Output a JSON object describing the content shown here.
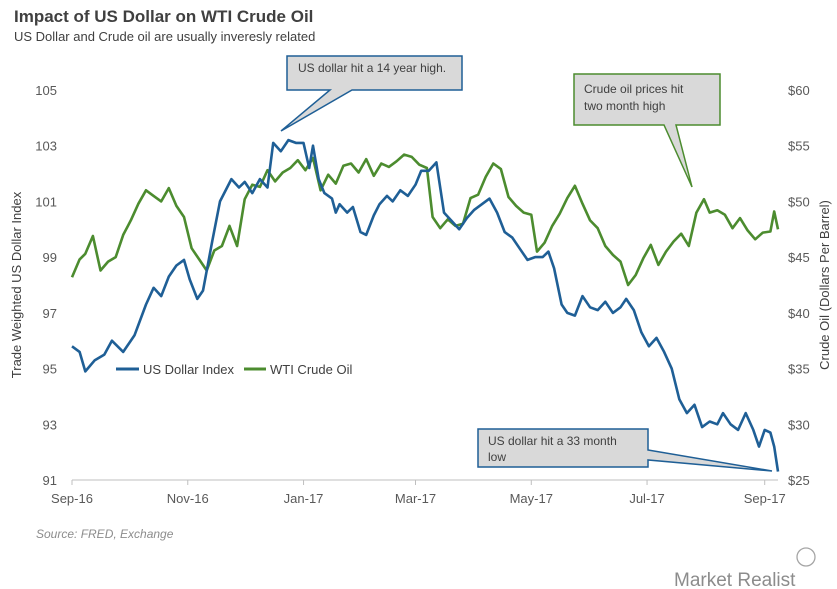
{
  "title": "Impact of US Dollar on WTI Crude Oil",
  "subtitle": "US Dollar and Crude oil are usually inveresly related",
  "source": "Source: FRED, Exchange",
  "brand": "Market Realist",
  "chart_data": {
    "type": "line",
    "xlabel": "",
    "x_ticks": [
      "Sep-16",
      "Nov-16",
      "Jan-17",
      "Mar-17",
      "May-17",
      "Jul-17",
      "Sep-17"
    ],
    "x_range": [
      "2016-09-01",
      "2017-09-08"
    ],
    "y_left": {
      "label": "Trade Weighted US Dollar Index",
      "ticks": [
        "105",
        "103",
        "101",
        "99",
        "97",
        "95",
        "93",
        "91"
      ],
      "range": [
        91,
        105
      ]
    },
    "y_right": {
      "label": "Crude Oil (Dollars  Per Barrel)",
      "ticks": [
        "$60",
        "$55",
        "$50",
        "$45",
        "$40",
        "$35",
        "$30",
        "$25"
      ],
      "range": [
        25,
        60
      ]
    },
    "legend_position": "lower-left inside plot",
    "series": [
      {
        "name": "US Dollar Index",
        "axis": "left",
        "color": "#1f5f96",
        "points": [
          [
            "2016-09-01",
            95.8
          ],
          [
            "2016-09-05",
            95.6
          ],
          [
            "2016-09-08",
            94.9
          ],
          [
            "2016-09-13",
            95.3
          ],
          [
            "2016-09-18",
            95.5
          ],
          [
            "2016-09-22",
            96.0
          ],
          [
            "2016-09-28",
            95.6
          ],
          [
            "2016-10-04",
            96.2
          ],
          [
            "2016-10-10",
            97.3
          ],
          [
            "2016-10-14",
            97.9
          ],
          [
            "2016-10-18",
            97.6
          ],
          [
            "2016-10-22",
            98.3
          ],
          [
            "2016-10-26",
            98.7
          ],
          [
            "2016-10-30",
            98.9
          ],
          [
            "2016-11-02",
            98.2
          ],
          [
            "2016-11-06",
            97.5
          ],
          [
            "2016-11-09",
            97.8
          ],
          [
            "2016-11-14",
            99.6
          ],
          [
            "2016-11-18",
            101.0
          ],
          [
            "2016-11-24",
            101.8
          ],
          [
            "2016-11-28",
            101.5
          ],
          [
            "2016-12-01",
            101.7
          ],
          [
            "2016-12-05",
            101.3
          ],
          [
            "2016-12-09",
            101.8
          ],
          [
            "2016-12-13",
            101.5
          ],
          [
            "2016-12-16",
            103.1
          ],
          [
            "2016-12-20",
            102.8
          ],
          [
            "2016-12-24",
            103.2
          ],
          [
            "2016-12-28",
            103.1
          ],
          [
            "2017-01-01",
            103.1
          ],
          [
            "2017-01-04",
            102.2
          ],
          [
            "2017-01-06",
            103.0
          ],
          [
            "2017-01-09",
            101.8
          ],
          [
            "2017-01-12",
            101.3
          ],
          [
            "2017-01-16",
            101.1
          ],
          [
            "2017-01-18",
            100.6
          ],
          [
            "2017-01-20",
            100.9
          ],
          [
            "2017-01-24",
            100.6
          ],
          [
            "2017-01-27",
            100.8
          ],
          [
            "2017-01-31",
            99.9
          ],
          [
            "2017-02-03",
            99.8
          ],
          [
            "2017-02-07",
            100.5
          ],
          [
            "2017-02-10",
            100.9
          ],
          [
            "2017-02-14",
            101.2
          ],
          [
            "2017-02-17",
            101.0
          ],
          [
            "2017-02-21",
            101.4
          ],
          [
            "2017-02-25",
            101.2
          ],
          [
            "2017-03-01",
            101.6
          ],
          [
            "2017-03-04",
            102.1
          ],
          [
            "2017-03-08",
            102.1
          ],
          [
            "2017-03-12",
            102.4
          ],
          [
            "2017-03-16",
            100.6
          ],
          [
            "2017-03-20",
            100.3
          ],
          [
            "2017-03-24",
            100.0
          ],
          [
            "2017-03-28",
            100.4
          ],
          [
            "2017-04-01",
            100.7
          ],
          [
            "2017-04-05",
            100.9
          ],
          [
            "2017-04-09",
            101.1
          ],
          [
            "2017-04-13",
            100.6
          ],
          [
            "2017-04-17",
            99.9
          ],
          [
            "2017-04-21",
            99.7
          ],
          [
            "2017-04-25",
            99.3
          ],
          [
            "2017-04-29",
            98.9
          ],
          [
            "2017-05-03",
            99.0
          ],
          [
            "2017-05-07",
            99.0
          ],
          [
            "2017-05-10",
            99.2
          ],
          [
            "2017-05-13",
            98.6
          ],
          [
            "2017-05-17",
            97.3
          ],
          [
            "2017-05-20",
            97.0
          ],
          [
            "2017-05-24",
            96.9
          ],
          [
            "2017-05-28",
            97.6
          ],
          [
            "2017-06-01",
            97.2
          ],
          [
            "2017-06-05",
            97.1
          ],
          [
            "2017-06-09",
            97.4
          ],
          [
            "2017-06-13",
            97.0
          ],
          [
            "2017-06-17",
            97.2
          ],
          [
            "2017-06-20",
            97.5
          ],
          [
            "2017-06-24",
            97.1
          ],
          [
            "2017-06-28",
            96.3
          ],
          [
            "2017-07-02",
            95.8
          ],
          [
            "2017-07-06",
            96.1
          ],
          [
            "2017-07-10",
            95.6
          ],
          [
            "2017-07-14",
            95.0
          ],
          [
            "2017-07-18",
            93.9
          ],
          [
            "2017-07-22",
            93.4
          ],
          [
            "2017-07-26",
            93.7
          ],
          [
            "2017-07-30",
            92.9
          ],
          [
            "2017-08-03",
            93.1
          ],
          [
            "2017-08-07",
            93.0
          ],
          [
            "2017-08-10",
            93.4
          ],
          [
            "2017-08-14",
            93.0
          ],
          [
            "2017-08-18",
            92.8
          ],
          [
            "2017-08-22",
            93.4
          ],
          [
            "2017-08-26",
            92.8
          ],
          [
            "2017-08-29",
            92.2
          ],
          [
            "2017-09-01",
            92.8
          ],
          [
            "2017-09-04",
            92.7
          ],
          [
            "2017-09-06",
            92.2
          ],
          [
            "2017-09-08",
            91.3
          ]
        ]
      },
      {
        "name": "WTI Crude Oil",
        "axis": "right",
        "color": "#4c8c2f",
        "points": [
          [
            "2016-09-01",
            43.2
          ],
          [
            "2016-09-05",
            44.8
          ],
          [
            "2016-09-08",
            45.3
          ],
          [
            "2016-09-12",
            46.9
          ],
          [
            "2016-09-16",
            43.8
          ],
          [
            "2016-09-20",
            44.6
          ],
          [
            "2016-09-24",
            45.0
          ],
          [
            "2016-09-28",
            47.0
          ],
          [
            "2016-10-02",
            48.3
          ],
          [
            "2016-10-06",
            49.8
          ],
          [
            "2016-10-10",
            51.0
          ],
          [
            "2016-10-14",
            50.5
          ],
          [
            "2016-10-18",
            50.0
          ],
          [
            "2016-10-22",
            51.2
          ],
          [
            "2016-10-26",
            49.6
          ],
          [
            "2016-10-30",
            48.6
          ],
          [
            "2016-11-03",
            45.8
          ],
          [
            "2016-11-07",
            44.8
          ],
          [
            "2016-11-11",
            43.8
          ],
          [
            "2016-11-15",
            45.6
          ],
          [
            "2016-11-19",
            46.0
          ],
          [
            "2016-11-23",
            47.8
          ],
          [
            "2016-11-27",
            46.0
          ],
          [
            "2016-12-01",
            50.2
          ],
          [
            "2016-12-05",
            51.5
          ],
          [
            "2016-12-09",
            51.3
          ],
          [
            "2016-12-13",
            52.8
          ],
          [
            "2016-12-17",
            51.8
          ],
          [
            "2016-12-21",
            52.6
          ],
          [
            "2016-12-25",
            53.0
          ],
          [
            "2016-12-29",
            53.7
          ],
          [
            "2017-01-02",
            52.8
          ],
          [
            "2017-01-06",
            53.9
          ],
          [
            "2017-01-10",
            51.0
          ],
          [
            "2017-01-14",
            52.4
          ],
          [
            "2017-01-18",
            51.6
          ],
          [
            "2017-01-22",
            53.2
          ],
          [
            "2017-01-26",
            53.4
          ],
          [
            "2017-01-30",
            52.6
          ],
          [
            "2017-02-03",
            53.8
          ],
          [
            "2017-02-07",
            52.3
          ],
          [
            "2017-02-11",
            53.4
          ],
          [
            "2017-02-15",
            53.1
          ],
          [
            "2017-02-19",
            53.6
          ],
          [
            "2017-02-23",
            54.2
          ],
          [
            "2017-02-27",
            54.0
          ],
          [
            "2017-03-03",
            53.3
          ],
          [
            "2017-03-07",
            53.0
          ],
          [
            "2017-03-10",
            48.6
          ],
          [
            "2017-03-14",
            47.6
          ],
          [
            "2017-03-18",
            48.4
          ],
          [
            "2017-03-22",
            47.8
          ],
          [
            "2017-03-26",
            48.0
          ],
          [
            "2017-03-30",
            50.3
          ],
          [
            "2017-04-03",
            50.6
          ],
          [
            "2017-04-07",
            52.2
          ],
          [
            "2017-04-11",
            53.4
          ],
          [
            "2017-04-15",
            52.9
          ],
          [
            "2017-04-19",
            50.4
          ],
          [
            "2017-04-23",
            49.6
          ],
          [
            "2017-04-27",
            49.0
          ],
          [
            "2017-05-01",
            48.8
          ],
          [
            "2017-05-04",
            45.5
          ],
          [
            "2017-05-08",
            46.3
          ],
          [
            "2017-05-12",
            47.8
          ],
          [
            "2017-05-16",
            48.9
          ],
          [
            "2017-05-20",
            50.3
          ],
          [
            "2017-05-24",
            51.4
          ],
          [
            "2017-05-28",
            49.8
          ],
          [
            "2017-06-01",
            48.3
          ],
          [
            "2017-06-05",
            47.6
          ],
          [
            "2017-06-09",
            46.0
          ],
          [
            "2017-06-13",
            45.2
          ],
          [
            "2017-06-17",
            44.6
          ],
          [
            "2017-06-21",
            42.5
          ],
          [
            "2017-06-25",
            43.4
          ],
          [
            "2017-06-29",
            44.9
          ],
          [
            "2017-07-03",
            46.1
          ],
          [
            "2017-07-07",
            44.3
          ],
          [
            "2017-07-11",
            45.5
          ],
          [
            "2017-07-15",
            46.4
          ],
          [
            "2017-07-19",
            47.1
          ],
          [
            "2017-07-23",
            46.0
          ],
          [
            "2017-07-27",
            49.0
          ],
          [
            "2017-07-31",
            50.2
          ],
          [
            "2017-08-03",
            49.0
          ],
          [
            "2017-08-07",
            49.2
          ],
          [
            "2017-08-11",
            48.8
          ],
          [
            "2017-08-15",
            47.6
          ],
          [
            "2017-08-19",
            48.5
          ],
          [
            "2017-08-23",
            47.4
          ],
          [
            "2017-08-27",
            46.6
          ],
          [
            "2017-08-31",
            47.2
          ],
          [
            "2017-09-04",
            47.3
          ],
          [
            "2017-09-06",
            49.1
          ],
          [
            "2017-09-08",
            47.5
          ]
        ]
      }
    ],
    "annotations": [
      {
        "text": [
          "US dollar hit a 14 year high."
        ],
        "date": "2016-12-28",
        "series": "US Dollar Index",
        "value": 103.2
      },
      {
        "text": [
          "Crude oil prices hit",
          "two month high"
        ],
        "date": "2017-08-01",
        "series": "WTI Crude Oil",
        "value": 50.2
      },
      {
        "text": [
          "US dollar hit a 33 month",
          "low"
        ],
        "date": "2017-09-08",
        "series": "US Dollar Index",
        "value": 91.3
      }
    ]
  }
}
